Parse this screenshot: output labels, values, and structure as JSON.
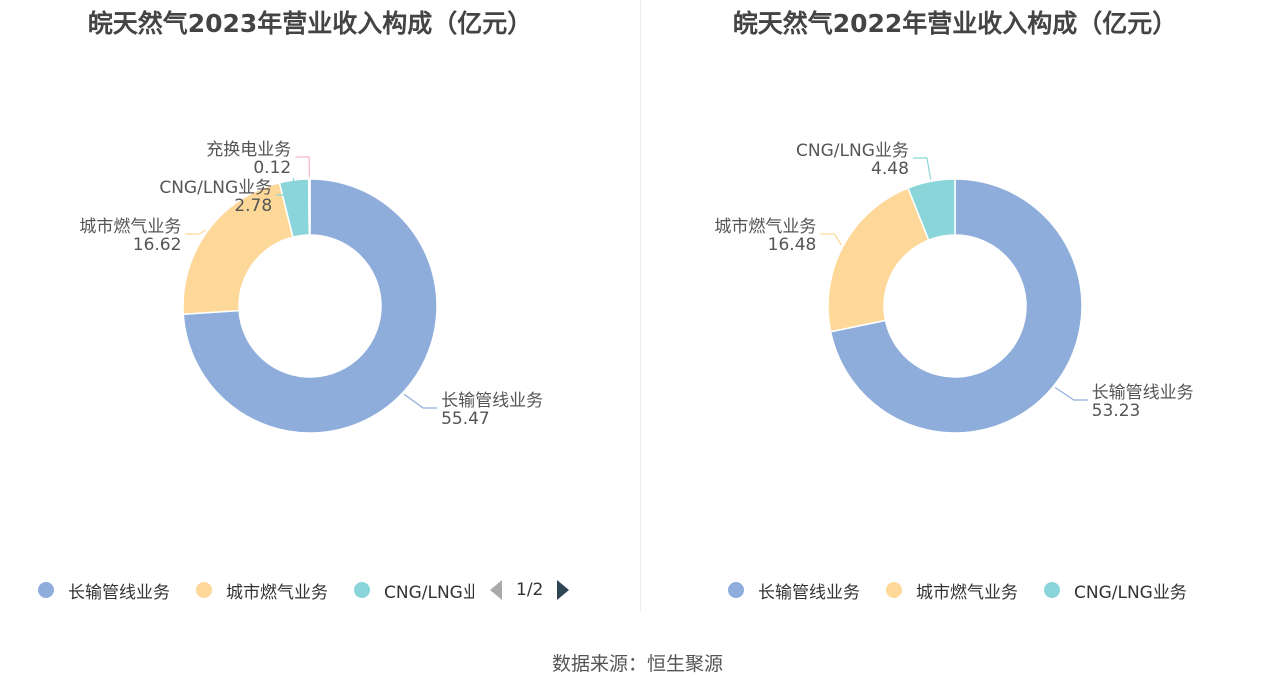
{
  "colors": {
    "长输管线业务": "#8eaddb",
    "城市燃气业务": "#fdd899",
    "CNG/LNG业务": "#8ad5d9",
    "充换电业务": "#f5b6cf"
  },
  "chart_data": [
    {
      "type": "pie",
      "title": "皖天然气2023年营业收入构成（亿元）",
      "slices": [
        {
          "name": "长输管线业务",
          "value": 55.47
        },
        {
          "name": "城市燃气业务",
          "value": 16.62
        },
        {
          "name": "CNG/LNG业务",
          "value": 2.78
        },
        {
          "name": "充换电业务",
          "value": 0.12
        }
      ],
      "legend": {
        "items": [
          "长输管线业务",
          "城市燃气业务",
          "CNG/LNG业务"
        ],
        "page": "1/2",
        "placement": "bottom"
      }
    },
    {
      "type": "pie",
      "title": "皖天然气2022年营业收入构成（亿元）",
      "slices": [
        {
          "name": "长输管线业务",
          "value": 53.23
        },
        {
          "name": "城市燃气业务",
          "value": 16.48
        },
        {
          "name": "CNG/LNG业务",
          "value": 4.48
        }
      ],
      "legend": {
        "items": [
          "长输管线业务",
          "城市燃气业务",
          "CNG/LNG业务"
        ],
        "page": "",
        "placement": "bottom"
      }
    }
  ],
  "source": "数据来源：恒生聚源"
}
